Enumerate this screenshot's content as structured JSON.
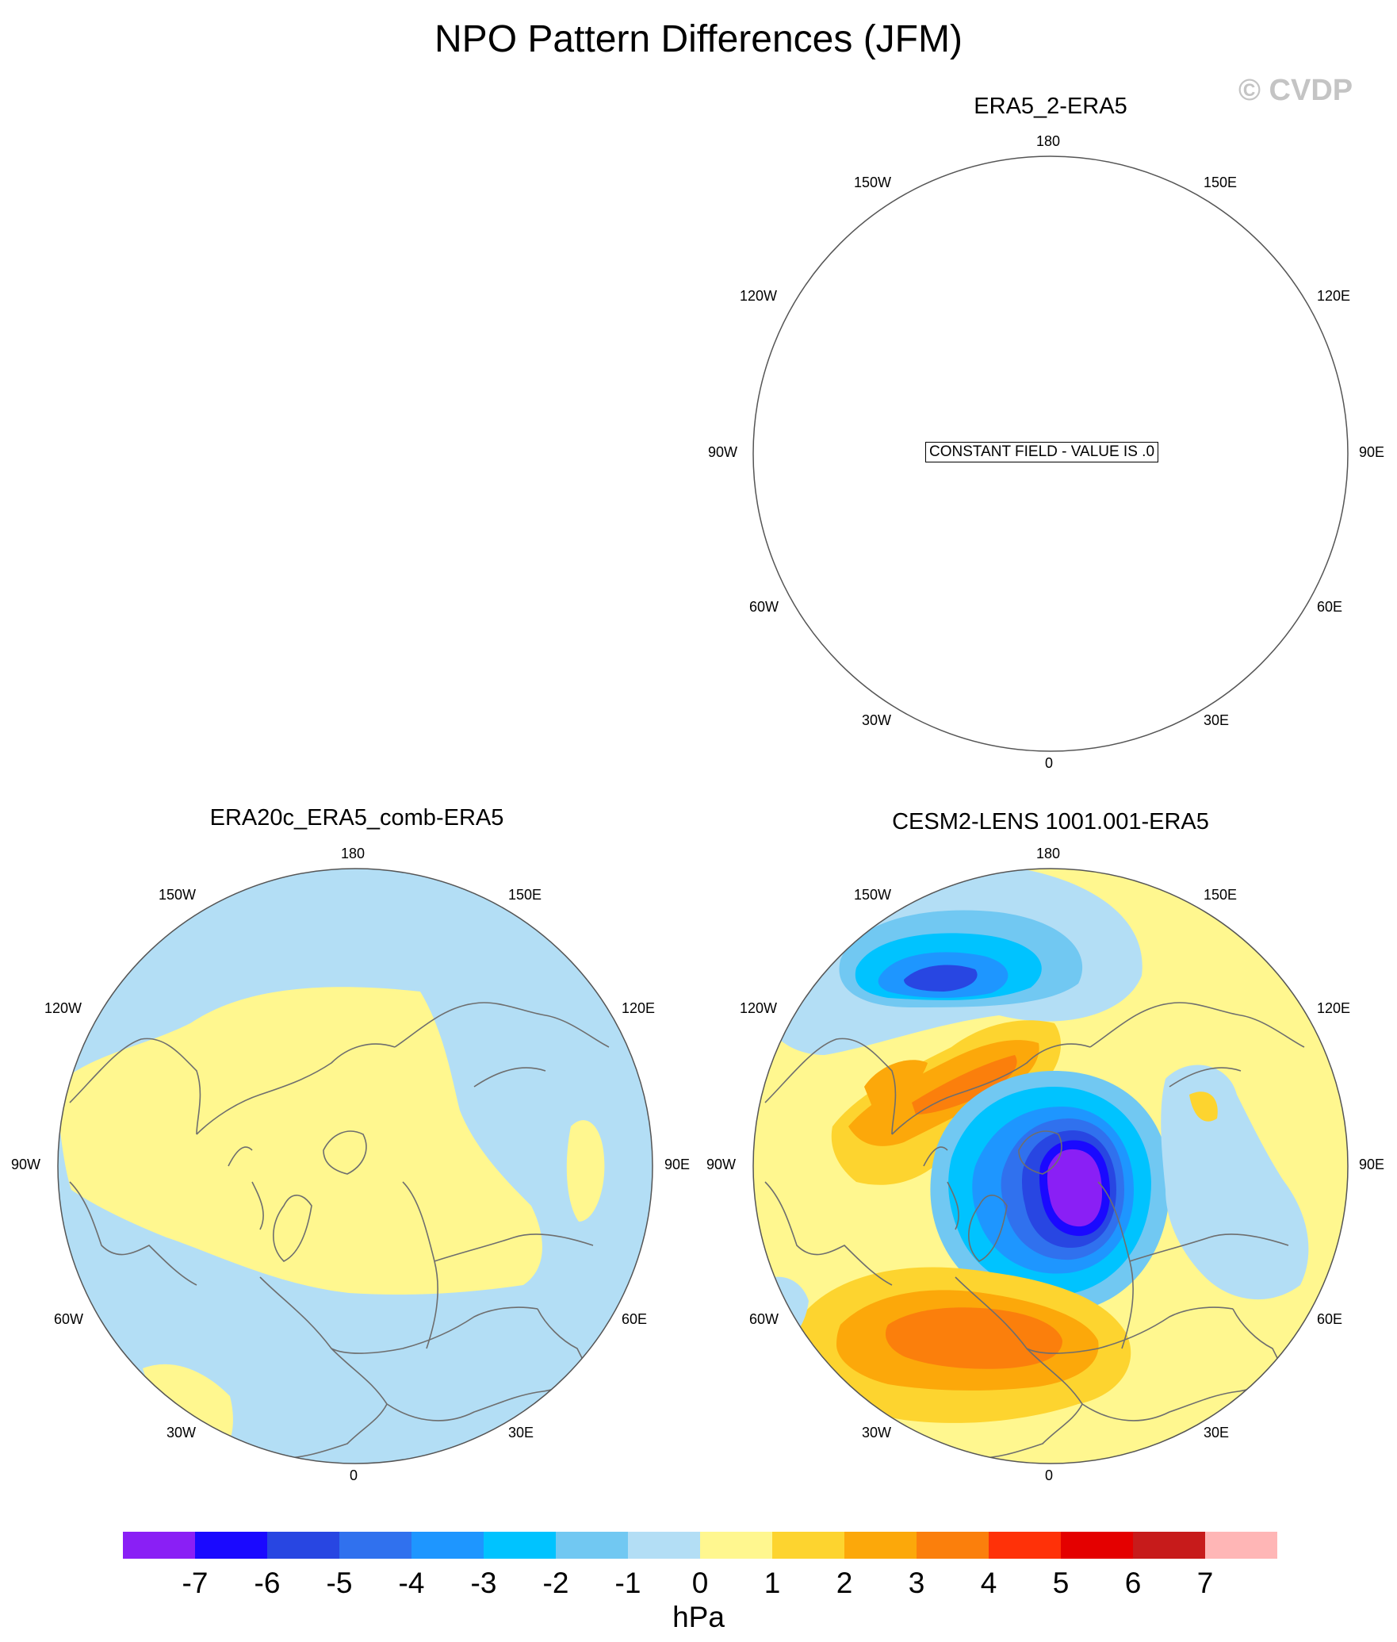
{
  "title": "NPO Pattern Differences (JFM)",
  "watermark": "© CVDP",
  "panels": [
    {
      "id": "era5_2",
      "title": "ERA5_2-ERA5",
      "note": "CONSTANT FIELD - VALUE IS .0"
    },
    {
      "id": "era20c",
      "title": "ERA20c_ERA5_comb-ERA5"
    },
    {
      "id": "cesm2",
      "title": "CESM2-LENS 1001.001-ERA5"
    }
  ],
  "longitude_labels": [
    "180",
    "150E",
    "120E",
    "90E",
    "60E",
    "30E",
    "0",
    "30W",
    "60W",
    "90W",
    "120W",
    "150W"
  ],
  "colorbar": {
    "units": "hPa",
    "ticks": [
      "-7",
      "-6",
      "-5",
      "-4",
      "-3",
      "-2",
      "-1",
      "0",
      "1",
      "2",
      "3",
      "4",
      "5",
      "6",
      "7"
    ],
    "colors": [
      "#8a1ff5",
      "#1a09ff",
      "#2846e2",
      "#3071ee",
      "#1e96ff",
      "#00c3ff",
      "#71c8f2",
      "#b3def5",
      "#fff78f",
      "#fdd42f",
      "#fca80a",
      "#fb7f0c",
      "#ff3108",
      "#e40000",
      "#c71b1b",
      "#ffb6b6"
    ]
  },
  "colors": {
    "land_outline": "#6e6e6e",
    "background": "#ffffff"
  }
}
